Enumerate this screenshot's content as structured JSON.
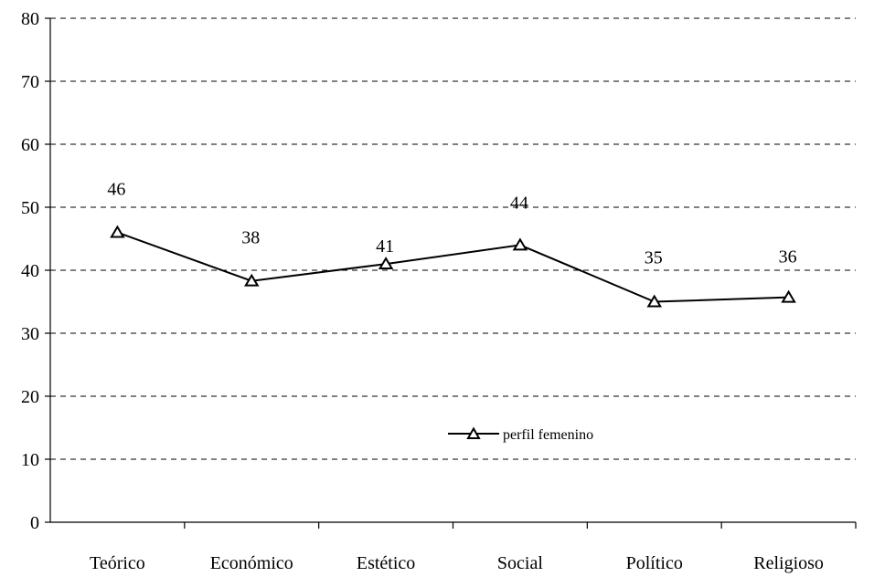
{
  "chart_data": {
    "type": "line",
    "title": "",
    "xlabel": "",
    "ylabel": "",
    "ylim": [
      0,
      80
    ],
    "yticks": [
      0,
      10,
      20,
      30,
      40,
      50,
      60,
      70,
      80
    ],
    "grid": "horizontal dashed",
    "legend_position": "center",
    "categories": [
      "Teórico",
      "Económico",
      "Estético",
      "Social",
      "Político",
      "Religioso"
    ],
    "series": [
      {
        "name": "perfil femenino",
        "values": [
          46,
          38.3,
          41,
          44,
          35,
          35.7
        ],
        "data_labels": [
          "46",
          "38",
          "41",
          "44",
          "35",
          "36"
        ],
        "marker": "triangle-open",
        "color": "#000000"
      }
    ]
  }
}
